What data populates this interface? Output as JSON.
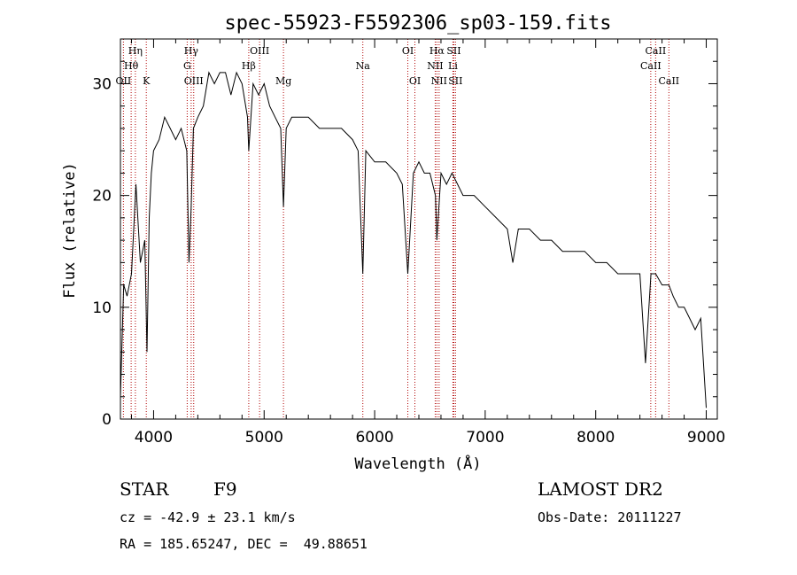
{
  "chart_data": {
    "type": "line",
    "title": "spec-55923-F5592306_sp03-159.fits",
    "xlabel": "Wavelength (Å)",
    "ylabel": "Flux (relative)",
    "xlim": [
      3700,
      9100
    ],
    "ylim": [
      0,
      34
    ],
    "xticks": [
      4000,
      5000,
      6000,
      7000,
      8000,
      9000
    ],
    "yticks": [
      0,
      10,
      20,
      30
    ],
    "grid": false,
    "series": [
      {
        "x": [
          3700,
          3730,
          3760,
          3800,
          3840,
          3880,
          3920,
          3940,
          3960,
          3980,
          4000,
          4050,
          4100,
          4150,
          4200,
          4250,
          4300,
          4320,
          4340,
          4360,
          4400,
          4450,
          4500,
          4550,
          4600,
          4650,
          4700,
          4750,
          4800,
          4850,
          4861,
          4900,
          4950,
          5000,
          5050,
          5100,
          5150,
          5175,
          5200,
          5250,
          5300,
          5400,
          5500,
          5600,
          5700,
          5800,
          5850,
          5893,
          5920,
          6000,
          6100,
          6200,
          6250,
          6300,
          6350,
          6400,
          6450,
          6500,
          6550,
          6563,
          6600,
          6650,
          6700,
          6750,
          6800,
          6850,
          6900,
          7000,
          7100,
          7200,
          7250,
          7300,
          7400,
          7500,
          7600,
          7700,
          7800,
          7900,
          8000,
          8100,
          8200,
          8300,
          8400,
          8450,
          8500,
          8542,
          8600,
          8662,
          8700,
          8750,
          8800,
          8850,
          8900,
          8950,
          9000
        ],
        "y": [
          2,
          12,
          11,
          13,
          21,
          14,
          16,
          6,
          18,
          22,
          24,
          25,
          27,
          26,
          25,
          26,
          24,
          14,
          19,
          26,
          27,
          28,
          31,
          30,
          31,
          31,
          29,
          31,
          30,
          27,
          24,
          30,
          29,
          30,
          28,
          27,
          26,
          19,
          26,
          27,
          27,
          27,
          26,
          26,
          26,
          25,
          24,
          13,
          24,
          23,
          23,
          22,
          21,
          13,
          22,
          23,
          22,
          22,
          20,
          16,
          22,
          21,
          22,
          21,
          20,
          20,
          20,
          19,
          18,
          17,
          14,
          17,
          17,
          16,
          16,
          15,
          15,
          15,
          14,
          14,
          13,
          13,
          13,
          5,
          13,
          13,
          12,
          12,
          11,
          10,
          10,
          9,
          8,
          9,
          1
        ]
      }
    ],
    "line_labels": [
      {
        "name": "Hη",
        "x": 3835,
        "row": 1
      },
      {
        "name": "Hθ",
        "x": 3797,
        "row": 2
      },
      {
        "name": "OII",
        "x": 3727,
        "row": 3
      },
      {
        "name": "K",
        "x": 3934,
        "row": 3
      },
      {
        "name": "Hγ",
        "x": 4340,
        "row": 1
      },
      {
        "name": "G",
        "x": 4304,
        "row": 2
      },
      {
        "name": "OIII",
        "x": 4363,
        "row": 3
      },
      {
        "name": "OIII",
        "x": 4959,
        "row": 1
      },
      {
        "name": "Hβ",
        "x": 4861,
        "row": 2
      },
      {
        "name": "Mg",
        "x": 5175,
        "row": 3
      },
      {
        "name": "Na",
        "x": 5893,
        "row": 2
      },
      {
        "name": "OI",
        "x": 6300,
        "row": 1
      },
      {
        "name": "OI",
        "x": 6364,
        "row": 3
      },
      {
        "name": "Hα",
        "x": 6563,
        "row": 1
      },
      {
        "name": "SII",
        "x": 6716,
        "row": 1
      },
      {
        "name": "NII",
        "x": 6548,
        "row": 2
      },
      {
        "name": "Li",
        "x": 6708,
        "row": 2
      },
      {
        "name": "NII",
        "x": 6583,
        "row": 3
      },
      {
        "name": "SII",
        "x": 6731,
        "row": 3
      },
      {
        "name": "CaII",
        "x": 8542,
        "row": 1
      },
      {
        "name": "CaII",
        "x": 8498,
        "row": 2
      },
      {
        "name": "CaII",
        "x": 8662,
        "row": 3
      }
    ],
    "line_marks": [
      3727,
      3797,
      3835,
      3934,
      4304,
      4340,
      4363,
      4861,
      4959,
      5175,
      5893,
      6300,
      6364,
      6548,
      6563,
      6583,
      6708,
      6716,
      6731,
      8498,
      8542,
      8662
    ]
  },
  "info": {
    "class": "STAR",
    "subclass": "F9",
    "survey": "LAMOST DR2",
    "cz": "cz = -42.9 ± 23.1 km/s",
    "obsdate": "Obs-Date: 20111227",
    "radec": "RA = 185.65247, DEC =  49.88651"
  },
  "colors": {
    "line": "#000000",
    "markers": "#b00000"
  }
}
